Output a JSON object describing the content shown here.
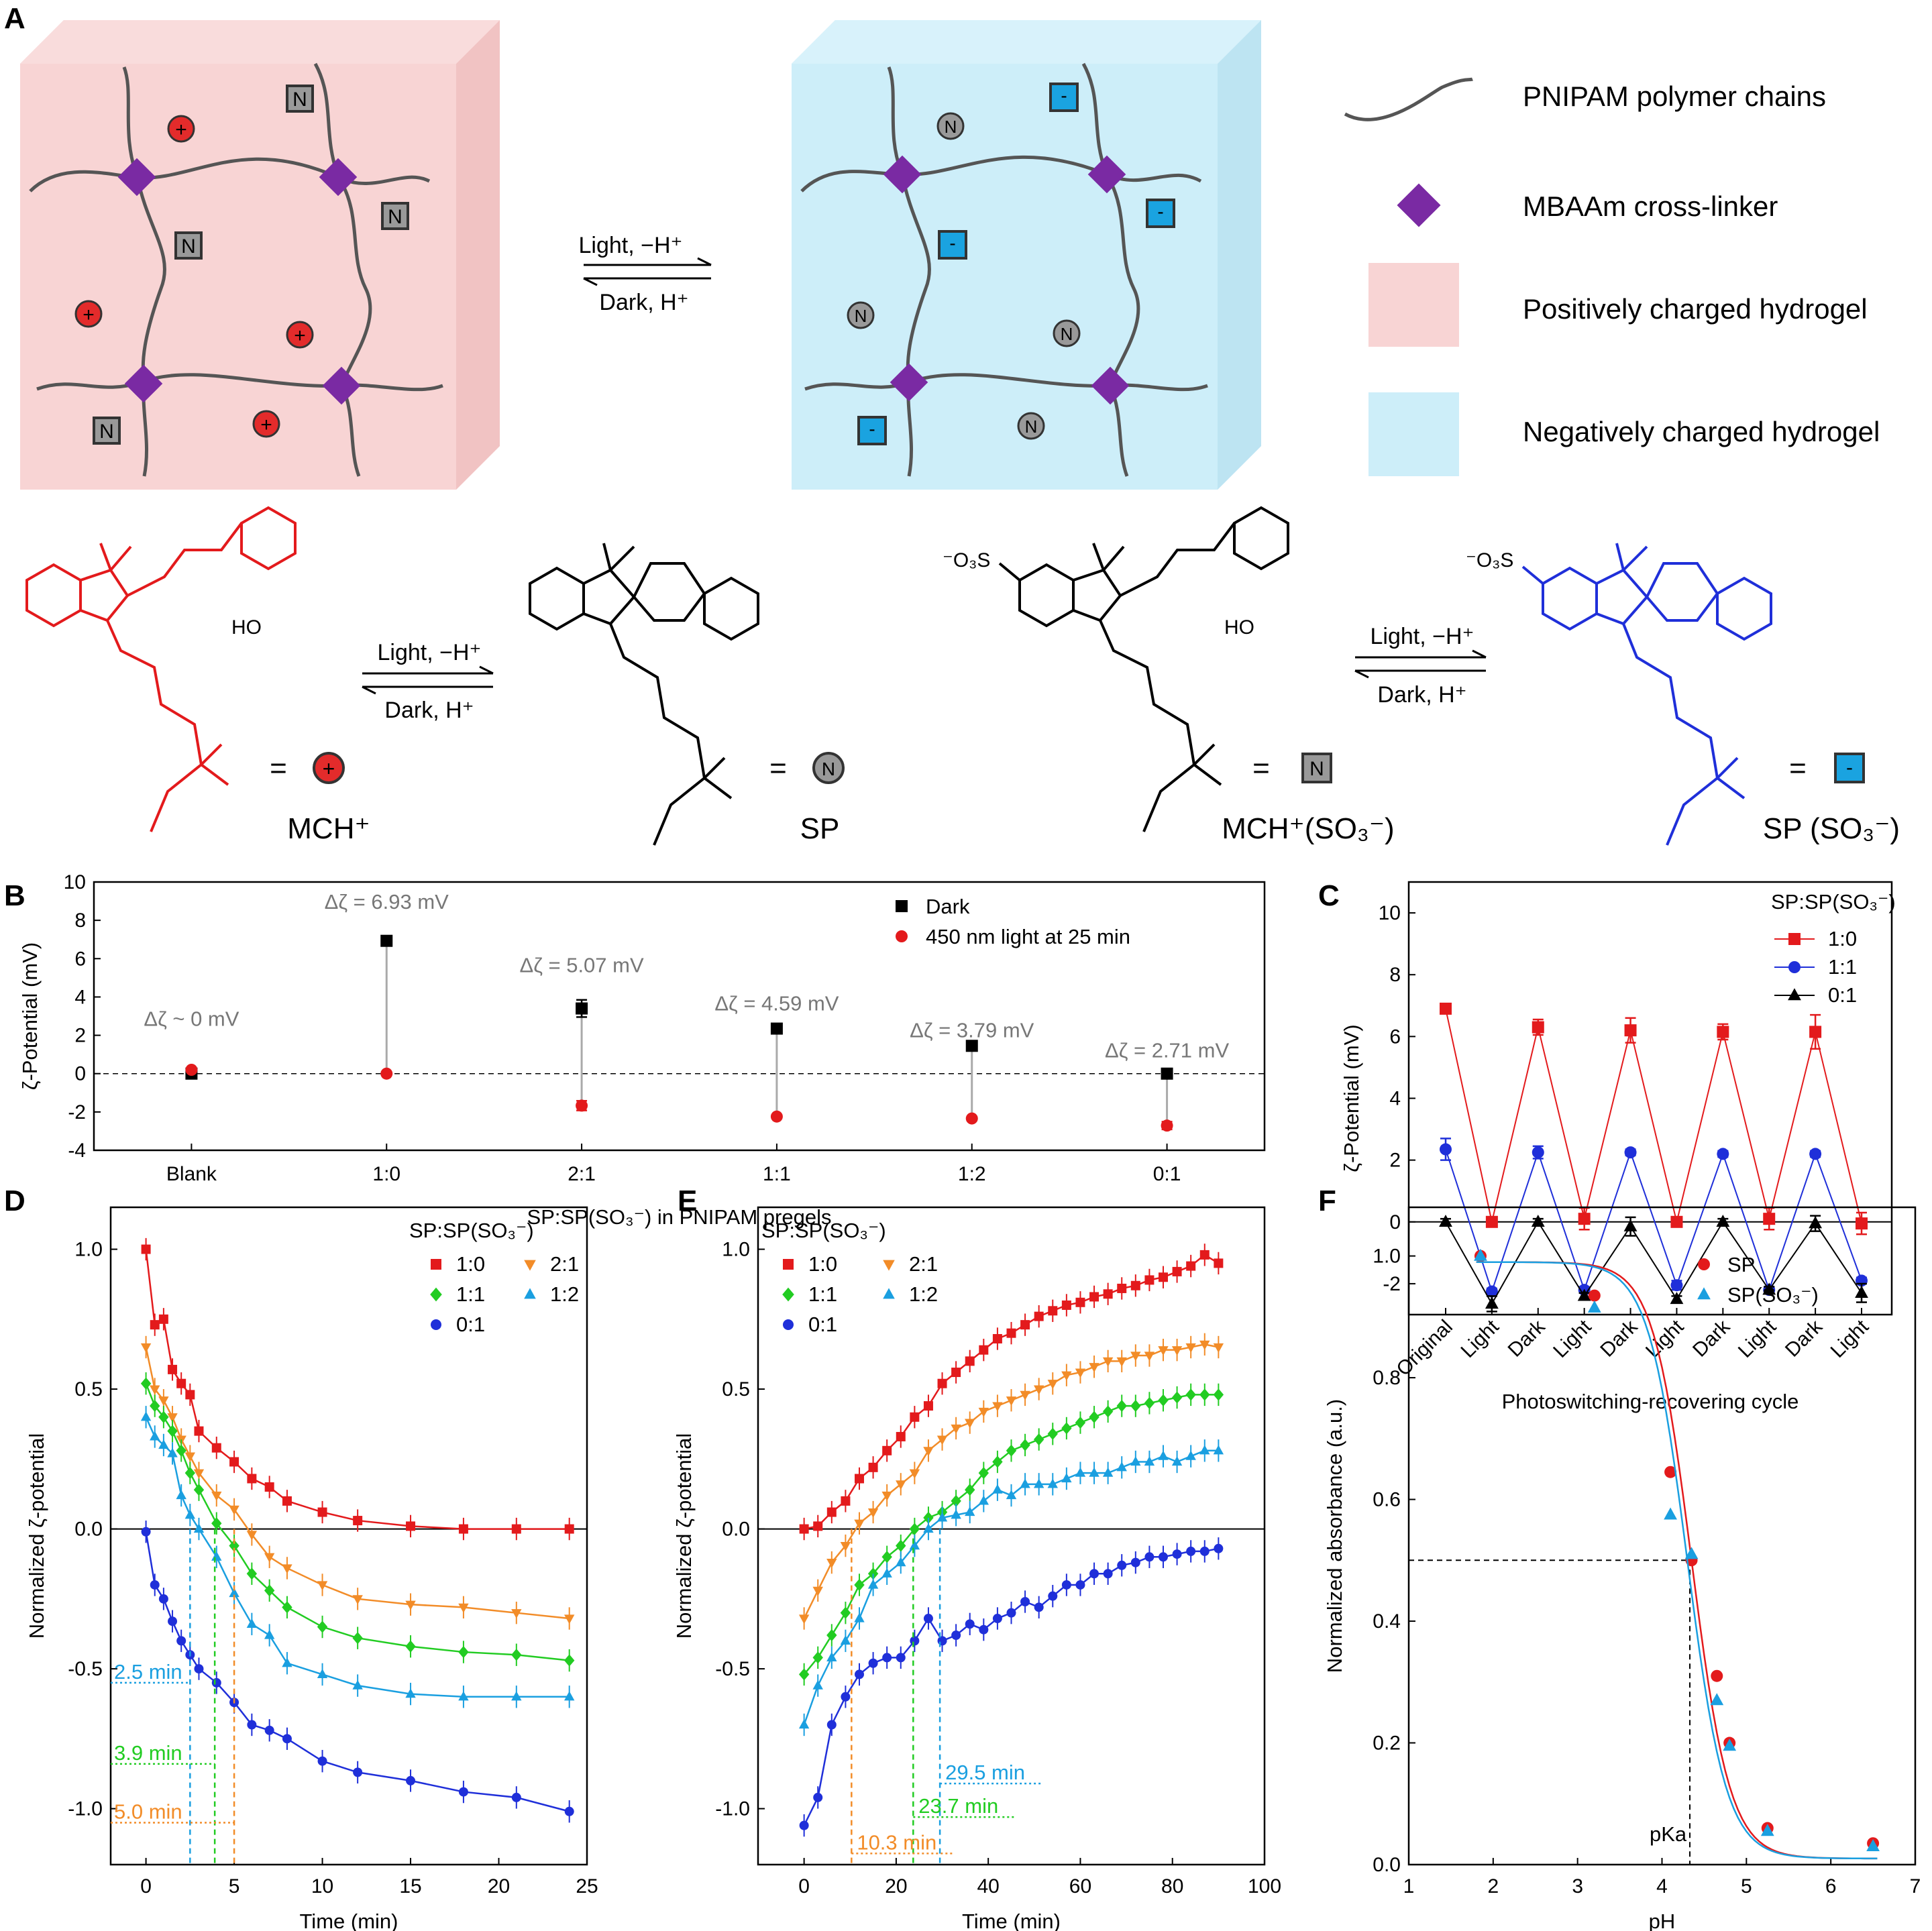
{
  "panels": {
    "A": {
      "letter": "A",
      "arrow_top_left": "Light, −H⁺",
      "arrow_bottom_left": "Dark, H⁺",
      "legend": [
        {
          "label": "PNIPAM polymer chains"
        },
        {
          "label": "MBAAm cross-linker"
        },
        {
          "label": "Positively charged hydrogel"
        },
        {
          "label": "Negatively charged hydrogel"
        }
      ],
      "molecules": [
        {
          "name": "MCH⁺",
          "symbol": "+",
          "color": "#e32b2b"
        },
        {
          "name": "SP",
          "symbol": "N",
          "color": "#888888"
        },
        {
          "name": "MCH⁺(SO₃⁻)",
          "symbol": "N",
          "color": "#888888"
        },
        {
          "name": "SP (SO₃⁻)",
          "symbol": "-",
          "color": "#1aa3e0"
        }
      ],
      "reaction_arrows": [
        "Light, −H⁺",
        "Dark, H⁺"
      ],
      "so3_label": "⁻O₃S",
      "hydroxyl": "HO",
      "eq": "="
    },
    "B": {
      "letter": "B"
    },
    "C": {
      "letter": "C"
    },
    "D": {
      "letter": "D"
    },
    "E": {
      "letter": "E"
    },
    "F": {
      "letter": "F"
    }
  },
  "colors": {
    "red": "#e31a1c",
    "blue": "#1f2fd9",
    "black": "#000000",
    "green": "#22cc22",
    "orange": "#f28c28",
    "cyan": "#1a9fe0",
    "pink_gel": "#f8d4d4",
    "blue_gel": "#cdeef9",
    "purple": "#7a2aa3"
  },
  "chart_data": [
    {
      "id": "B",
      "type": "scatter",
      "xlabel": "SP:SP(SO₃⁻) in PNIPAM pregels",
      "ylabel": "ζ-Potential (mV)",
      "ylim": [
        -4,
        10
      ],
      "yticks": [
        -4,
        -2,
        0,
        2,
        4,
        6,
        8,
        10
      ],
      "categories": [
        "Blank",
        "1:0",
        "2:1",
        "1:1",
        "1:2",
        "0:1"
      ],
      "series": [
        {
          "name": "Dark",
          "values": [
            0,
            6.93,
            3.4,
            2.35,
            1.45,
            0
          ],
          "errors": [
            0.05,
            0.1,
            0.45,
            0.25,
            0.1,
            0.1
          ]
        },
        {
          "name": "450 nm light at 25 min",
          "values": [
            0.2,
            0,
            -1.67,
            -2.24,
            -2.34,
            -2.71
          ],
          "errors": [
            0.1,
            0.05,
            0.25,
            0.1,
            0.1,
            0.2
          ]
        }
      ],
      "annotations": [
        "Δζ ~ 0 mV",
        "Δζ = 6.93 mV",
        "Δζ = 5.07 mV",
        "Δζ = 4.59 mV",
        "Δζ = 3.79 mV",
        "Δζ = 2.71 mV"
      ],
      "legend_position": "top-right"
    },
    {
      "id": "C",
      "type": "line",
      "xlabel": "Photoswitching-recovering cycle",
      "ylabel": "ζ-Potential (mV)",
      "ylim": [
        -3,
        11
      ],
      "yticks": [
        -2,
        0,
        2,
        4,
        6,
        8,
        10
      ],
      "categories": [
        "Original",
        "Light",
        "Dark",
        "Light",
        "Dark",
        "Light",
        "Dark",
        "Light",
        "Dark",
        "Light"
      ],
      "legend_title": "SP:SP(SO₃⁻)",
      "series": [
        {
          "name": "1:0",
          "values": [
            6.9,
            0,
            6.3,
            0.1,
            6.2,
            0,
            6.15,
            0.1,
            6.15,
            -0.05
          ],
          "errors": [
            0.15,
            0.1,
            0.25,
            0.35,
            0.4,
            0.1,
            0.25,
            0.35,
            0.55,
            0.35
          ]
        },
        {
          "name": "1:1",
          "values": [
            2.35,
            -2.25,
            2.25,
            -2.2,
            2.25,
            -2.05,
            2.2,
            -2.2,
            2.2,
            -1.9
          ],
          "errors": [
            0.35,
            0.1,
            0.2,
            0.1,
            0.1,
            0.15,
            0.1,
            0.1,
            0.1,
            0.1
          ]
        },
        {
          "name": "0:1",
          "values": [
            0,
            -2.65,
            0,
            -2.4,
            -0.15,
            -2.5,
            0,
            -2.2,
            -0.05,
            -2.3
          ],
          "errors": [
            0.1,
            0.25,
            0.1,
            0.1,
            0.3,
            0.1,
            0.1,
            0.1,
            0.25,
            0.3
          ]
        }
      ],
      "legend_position": "top-right"
    },
    {
      "id": "D",
      "type": "scatter",
      "xlabel": "Time (min)",
      "ylabel": "Normalized ζ-potential",
      "xlim": [
        -2,
        25
      ],
      "ylim": [
        -1.2,
        1.15
      ],
      "xticks": [
        0,
        5,
        10,
        15,
        20,
        25
      ],
      "yticks": [
        -1.0,
        -0.5,
        0.0,
        0.5,
        1.0
      ],
      "legend_title": "SP:SP(SO₃⁻)",
      "x": [
        0,
        0.5,
        1,
        1.5,
        2,
        2.5,
        3,
        4,
        5,
        6,
        7,
        8,
        10,
        12,
        15,
        18,
        21,
        24
      ],
      "series": [
        {
          "name": "1:0",
          "values": [
            1.0,
            0.73,
            0.75,
            0.57,
            0.52,
            0.48,
            0.35,
            0.29,
            0.24,
            0.18,
            0.15,
            0.1,
            0.06,
            0.03,
            0.01,
            0.0,
            0.0,
            0.0
          ]
        },
        {
          "name": "2:1",
          "values": [
            0.65,
            0.5,
            0.46,
            0.4,
            0.32,
            0.26,
            0.2,
            0.12,
            0.07,
            -0.02,
            -0.1,
            -0.14,
            -0.2,
            -0.25,
            -0.27,
            -0.28,
            -0.3,
            -0.32
          ]
        },
        {
          "name": "1:1",
          "values": [
            0.52,
            0.44,
            0.4,
            0.35,
            0.28,
            0.2,
            0.14,
            0.02,
            -0.06,
            -0.16,
            -0.22,
            -0.28,
            -0.35,
            -0.39,
            -0.42,
            -0.44,
            -0.45,
            -0.47
          ]
        },
        {
          "name": "1:2",
          "values": [
            0.4,
            0.33,
            0.3,
            0.27,
            0.12,
            0.05,
            0.0,
            -0.1,
            -0.23,
            -0.34,
            -0.38,
            -0.48,
            -0.52,
            -0.56,
            -0.59,
            -0.6,
            -0.6,
            -0.6
          ]
        },
        {
          "name": "0:1",
          "values": [
            -0.01,
            -0.2,
            -0.25,
            -0.33,
            -0.4,
            -0.45,
            -0.5,
            -0.55,
            -0.62,
            -0.7,
            -0.72,
            -0.75,
            -0.83,
            -0.87,
            -0.9,
            -0.94,
            -0.96,
            -1.01
          ]
        }
      ],
      "annotations": [
        "2.5 min",
        "3.9 min",
        "5.0 min"
      ],
      "legend_position": "top-right"
    },
    {
      "id": "E",
      "type": "scatter",
      "xlabel": "Time (min)",
      "ylabel": "Normalized ζ-potential",
      "xlim": [
        -10,
        100
      ],
      "ylim": [
        -1.2,
        1.15
      ],
      "xticks": [
        0,
        20,
        40,
        60,
        80,
        100
      ],
      "yticks": [
        -1.0,
        -0.5,
        0.0,
        0.5,
        1.0
      ],
      "legend_title": "SP:SP(SO₃⁻)",
      "x": [
        0,
        3,
        6,
        9,
        12,
        15,
        18,
        21,
        24,
        27,
        30,
        33,
        36,
        39,
        42,
        45,
        48,
        51,
        54,
        57,
        60,
        63,
        66,
        69,
        72,
        75,
        78,
        81,
        84,
        87,
        90
      ],
      "series": [
        {
          "name": "1:0",
          "values": [
            0,
            0.01,
            0.06,
            0.1,
            0.18,
            0.22,
            0.28,
            0.33,
            0.4,
            0.44,
            0.52,
            0.56,
            0.6,
            0.64,
            0.68,
            0.7,
            0.73,
            0.76,
            0.78,
            0.8,
            0.81,
            0.83,
            0.84,
            0.86,
            0.87,
            0.89,
            0.9,
            0.92,
            0.94,
            0.98,
            0.95
          ]
        },
        {
          "name": "2:1",
          "values": [
            -0.32,
            -0.22,
            -0.12,
            -0.06,
            0.02,
            0.06,
            0.12,
            0.16,
            0.2,
            0.28,
            0.32,
            0.36,
            0.38,
            0.42,
            0.44,
            0.46,
            0.48,
            0.5,
            0.52,
            0.55,
            0.56,
            0.58,
            0.6,
            0.6,
            0.62,
            0.62,
            0.64,
            0.64,
            0.65,
            0.66,
            0.65
          ]
        },
        {
          "name": "1:1",
          "values": [
            -0.52,
            -0.46,
            -0.38,
            -0.3,
            -0.2,
            -0.16,
            -0.1,
            -0.06,
            0.0,
            0.04,
            0.06,
            0.1,
            0.14,
            0.2,
            0.24,
            0.28,
            0.3,
            0.32,
            0.34,
            0.36,
            0.38,
            0.4,
            0.42,
            0.44,
            0.44,
            0.45,
            0.46,
            0.47,
            0.48,
            0.48,
            0.48
          ]
        },
        {
          "name": "1:2",
          "values": [
            -0.7,
            -0.56,
            -0.46,
            -0.4,
            -0.32,
            -0.2,
            -0.16,
            -0.12,
            -0.06,
            0.0,
            0.04,
            0.05,
            0.06,
            0.1,
            0.14,
            0.12,
            0.16,
            0.16,
            0.16,
            0.18,
            0.2,
            0.2,
            0.2,
            0.22,
            0.24,
            0.24,
            0.26,
            0.24,
            0.26,
            0.28,
            0.28
          ]
        },
        {
          "name": "0:1",
          "values": [
            -1.06,
            -0.96,
            -0.7,
            -0.6,
            -0.52,
            -0.48,
            -0.46,
            -0.46,
            -0.4,
            -0.32,
            -0.4,
            -0.38,
            -0.34,
            -0.36,
            -0.32,
            -0.3,
            -0.26,
            -0.28,
            -0.24,
            -0.2,
            -0.2,
            -0.16,
            -0.16,
            -0.13,
            -0.12,
            -0.1,
            -0.1,
            -0.09,
            -0.08,
            -0.08,
            -0.07
          ]
        }
      ],
      "annotations": [
        "29.5 min",
        "23.7 min",
        "10.3 min"
      ],
      "legend_position": "top-left"
    },
    {
      "id": "F",
      "type": "scatter",
      "xlabel": "pH",
      "ylabel": "Normalized absorbance (a.u.)",
      "xlim": [
        1,
        7
      ],
      "ylim": [
        0,
        1.08
      ],
      "xticks": [
        1,
        2,
        3,
        4,
        5,
        6,
        7
      ],
      "yticks": [
        0.0,
        0.2,
        0.4,
        0.6,
        0.8,
        1.0
      ],
      "series": [
        {
          "name": "SP",
          "x": [
            1.85,
            3.2,
            4.1,
            4.35,
            4.65,
            4.8,
            5.25,
            6.5
          ],
          "values": [
            1.0,
            0.935,
            0.645,
            0.5,
            0.31,
            0.2,
            0.06,
            0.035
          ]
        },
        {
          "name": "SP(SO₃⁻)",
          "x": [
            1.85,
            3.2,
            4.1,
            4.35,
            4.65,
            4.8,
            5.25,
            6.5
          ],
          "values": [
            1.0,
            0.915,
            0.575,
            0.51,
            0.27,
            0.195,
            0.055,
            0.03
          ]
        }
      ],
      "annotations": [
        "pKa"
      ],
      "pka": 4.33,
      "legend_position": "top-right"
    }
  ]
}
